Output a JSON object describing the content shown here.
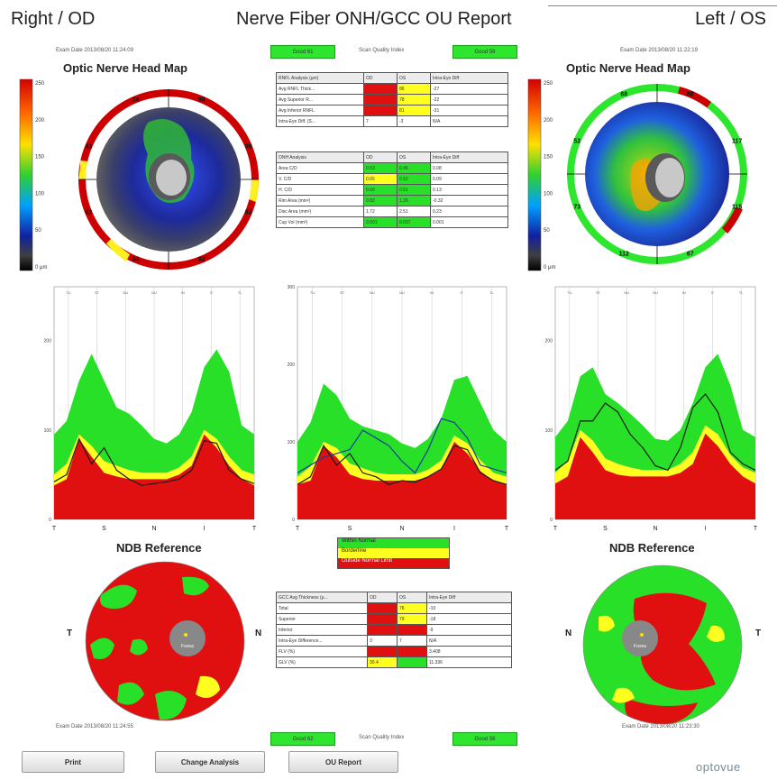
{
  "header": {
    "right_label": "Right / OD",
    "title": "Nerve Fiber ONH/GCC OU Report",
    "left_label": "Left / OS"
  },
  "top": {
    "exam_date_od": "Exam Date 2013/08/20 11:24:09",
    "exam_date_os": "Exam Date 2013/08/20 11:22:19",
    "quality_label": "Scan Quality Index",
    "quality_od": "Good 61",
    "quality_os": "Good 58",
    "onh_title_od": "Optic Nerve Head Map",
    "onh_title_os": "Optic Nerve Head Map",
    "scale_ticks": [
      "250",
      "200",
      "150",
      "100",
      "50",
      "0 μm"
    ]
  },
  "sector_labels_od": [
    "98",
    "99",
    "83",
    "92",
    "34",
    "62",
    "43",
    "24"
  ],
  "sector_labels_os": [
    "88",
    "117",
    "115",
    "67",
    "112",
    "73",
    "52",
    "68"
  ],
  "rnfl_table": {
    "headers": [
      "RNFL Analysis (μm)",
      "OD",
      "OS",
      "Intra-Eye Diff"
    ],
    "rows": [
      [
        "Avg RNFL Thick...",
        "",
        "86",
        "-27"
      ],
      [
        "Avg Superior R...",
        "",
        "78",
        "-22"
      ],
      [
        "Avg Inferior RNFL",
        "",
        "81",
        "-31"
      ],
      [
        "Intra-Eye Diff. (S...",
        "7",
        "-3",
        "N/A"
      ]
    ]
  },
  "onh_table": {
    "headers": [
      "ONH Analysis",
      "OD",
      "OS",
      "Intra-Eye Diff"
    ],
    "rows": [
      [
        "Area C/D",
        "0.53",
        "0.46",
        "0.08"
      ],
      [
        "V. C/D",
        "0.65",
        "0.52",
        "0.09"
      ],
      [
        "H. C/D",
        "0.60",
        "0.51",
        "0.13"
      ],
      [
        "Rim Area (mm²)",
        "0.82",
        "1.26",
        "-0.32"
      ],
      [
        "Disc Area (mm²)",
        "1.72",
        "2.51",
        "0.23"
      ],
      [
        "Cup Vol (mm³)",
        "0.001",
        "0.037",
        "0.001"
      ]
    ]
  },
  "chart_axes": {
    "sector_ticks": [
      "TU",
      "ST",
      "NU",
      "NU",
      "IN",
      "IT",
      "TL"
    ],
    "x_ticks": [
      "T",
      "S",
      "N",
      "I",
      "T"
    ],
    "y_ticks": [
      "200",
      "100",
      "0"
    ],
    "y_ticks_mid": [
      "300",
      "200",
      "100",
      "0"
    ]
  },
  "legend": {
    "items": [
      "Within Normal",
      "Borderline",
      "Outside Normal Limit"
    ],
    "colors": [
      "#28e028",
      "#ffff20",
      "#e01010"
    ]
  },
  "ndb": {
    "title_od": "NDB Reference",
    "title_os": "NDB Reference",
    "t_label": "T",
    "n_label": "N",
    "fovea_text": "Fovea"
  },
  "gcc_table": {
    "headers": [
      "GCC Avg Thickness (μ...",
      "OD",
      "OS",
      "Intra-Eye Diff"
    ],
    "rows": [
      [
        "Total",
        "",
        "76",
        "-10"
      ],
      [
        "Superior",
        "",
        "79",
        "-18"
      ],
      [
        "Inferior",
        "",
        "",
        "-9"
      ],
      [
        "Intra-Eye Difference...",
        "3",
        "7",
        "N/A"
      ],
      [
        "FLV (%)",
        "",
        "",
        "3.408"
      ],
      [
        "GLV (%)",
        "30.4",
        "",
        "11.336"
      ]
    ]
  },
  "bottom": {
    "exam_date_od": "Exam Date 2013/08/20 11:24:55",
    "exam_date_os": "Exam Date 2013/08/20 11:23:30",
    "quality_label": "Scan Quality Index",
    "quality_od": "Good 62",
    "quality_os": "Good 56"
  },
  "buttons": {
    "print": "Print",
    "change_analysis": "Change Analysis",
    "ou_report": "OU Report"
  },
  "brand": "optovue",
  "chart_data": [
    {
      "type": "area",
      "name": "od_tsnit",
      "x_ticks": [
        "T",
        "S",
        "N",
        "I",
        "T"
      ],
      "ylim": [
        0,
        260
      ],
      "y_ticks": [
        0,
        100,
        200
      ],
      "normative_upper": [
        95,
        110,
        155,
        185,
        155,
        125,
        118,
        105,
        90,
        85,
        95,
        120,
        170,
        190,
        165,
        105,
        95
      ],
      "borderline_upper": [
        50,
        62,
        95,
        82,
        65,
        60,
        55,
        52,
        52,
        52,
        58,
        70,
        100,
        90,
        70,
        55,
        50
      ],
      "outside_upper": [
        38,
        45,
        90,
        70,
        52,
        48,
        45,
        45,
        45,
        45,
        50,
        60,
        95,
        80,
        60,
        45,
        38
      ],
      "measured": [
        42,
        50,
        90,
        62,
        80,
        55,
        45,
        38,
        40,
        42,
        45,
        55,
        88,
        85,
        55,
        45,
        40
      ]
    },
    {
      "type": "area",
      "name": "ou_tsnit_overlay",
      "x_ticks": [
        "T",
        "S",
        "N",
        "I",
        "T"
      ],
      "ylim": [
        0,
        300
      ],
      "y_ticks": [
        0,
        100,
        200,
        300
      ],
      "normative_upper": [
        100,
        125,
        175,
        160,
        130,
        120,
        115,
        110,
        98,
        92,
        104,
        130,
        180,
        185,
        150,
        115,
        100
      ],
      "borderline_upper": [
        55,
        68,
        100,
        92,
        72,
        66,
        60,
        58,
        58,
        58,
        64,
        76,
        108,
        98,
        76,
        60,
        55
      ],
      "outside_upper": [
        45,
        50,
        95,
        80,
        58,
        52,
        50,
        50,
        50,
        50,
        55,
        65,
        100,
        85,
        62,
        50,
        45
      ],
      "measured_od": [
        45,
        55,
        95,
        70,
        85,
        60,
        55,
        45,
        50,
        48,
        55,
        65,
        95,
        90,
        60,
        50,
        45
      ],
      "measured_os": [
        60,
        70,
        80,
        85,
        90,
        115,
        105,
        95,
        75,
        60,
        90,
        130,
        125,
        105,
        70,
        65,
        60
      ]
    },
    {
      "type": "area",
      "name": "os_tsnit",
      "x_ticks": [
        "T",
        "S",
        "N",
        "I",
        "T"
      ],
      "ylim": [
        0,
        260
      ],
      "y_ticks": [
        0,
        100,
        200
      ],
      "normative_upper": [
        92,
        110,
        160,
        170,
        140,
        130,
        118,
        105,
        90,
        88,
        100,
        130,
        170,
        185,
        150,
        100,
        92
      ],
      "borderline_upper": [
        52,
        65,
        100,
        88,
        68,
        62,
        58,
        55,
        55,
        55,
        62,
        75,
        105,
        95,
        72,
        58,
        52
      ],
      "outside_upper": [
        40,
        48,
        92,
        75,
        55,
        50,
        48,
        48,
        48,
        48,
        52,
        62,
        96,
        82,
        62,
        48,
        40
      ],
      "measured": [
        55,
        65,
        110,
        110,
        130,
        120,
        95,
        80,
        60,
        55,
        80,
        125,
        140,
        120,
        75,
        62,
        55
      ]
    }
  ]
}
